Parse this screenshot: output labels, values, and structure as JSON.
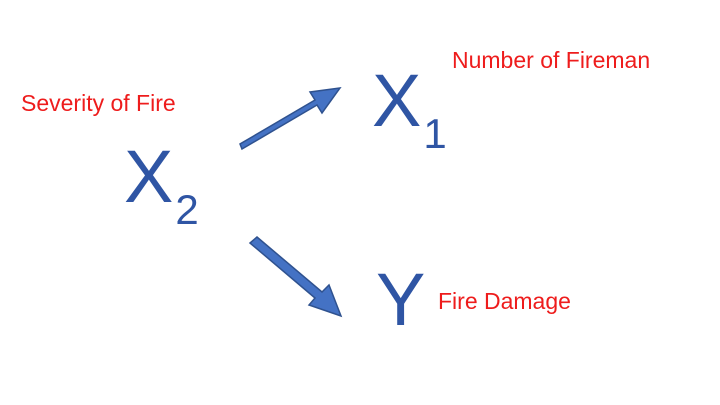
{
  "colors": {
    "label": "#ee1c1c",
    "variable": "#2f55a4",
    "arrow_fill": "#4472c4",
    "arrow_stroke": "#2f528f"
  },
  "nodes": {
    "x2": {
      "letter": "X",
      "subscript": "2",
      "label": "Severity of Fire"
    },
    "x1": {
      "letter": "X",
      "subscript": "1",
      "label": "Number of Fireman"
    },
    "y": {
      "letter": "Y",
      "subscript": "",
      "label": "Fire Damage"
    }
  },
  "edges": [
    {
      "from": "X2",
      "to": "X1"
    },
    {
      "from": "X2",
      "to": "Y"
    }
  ]
}
